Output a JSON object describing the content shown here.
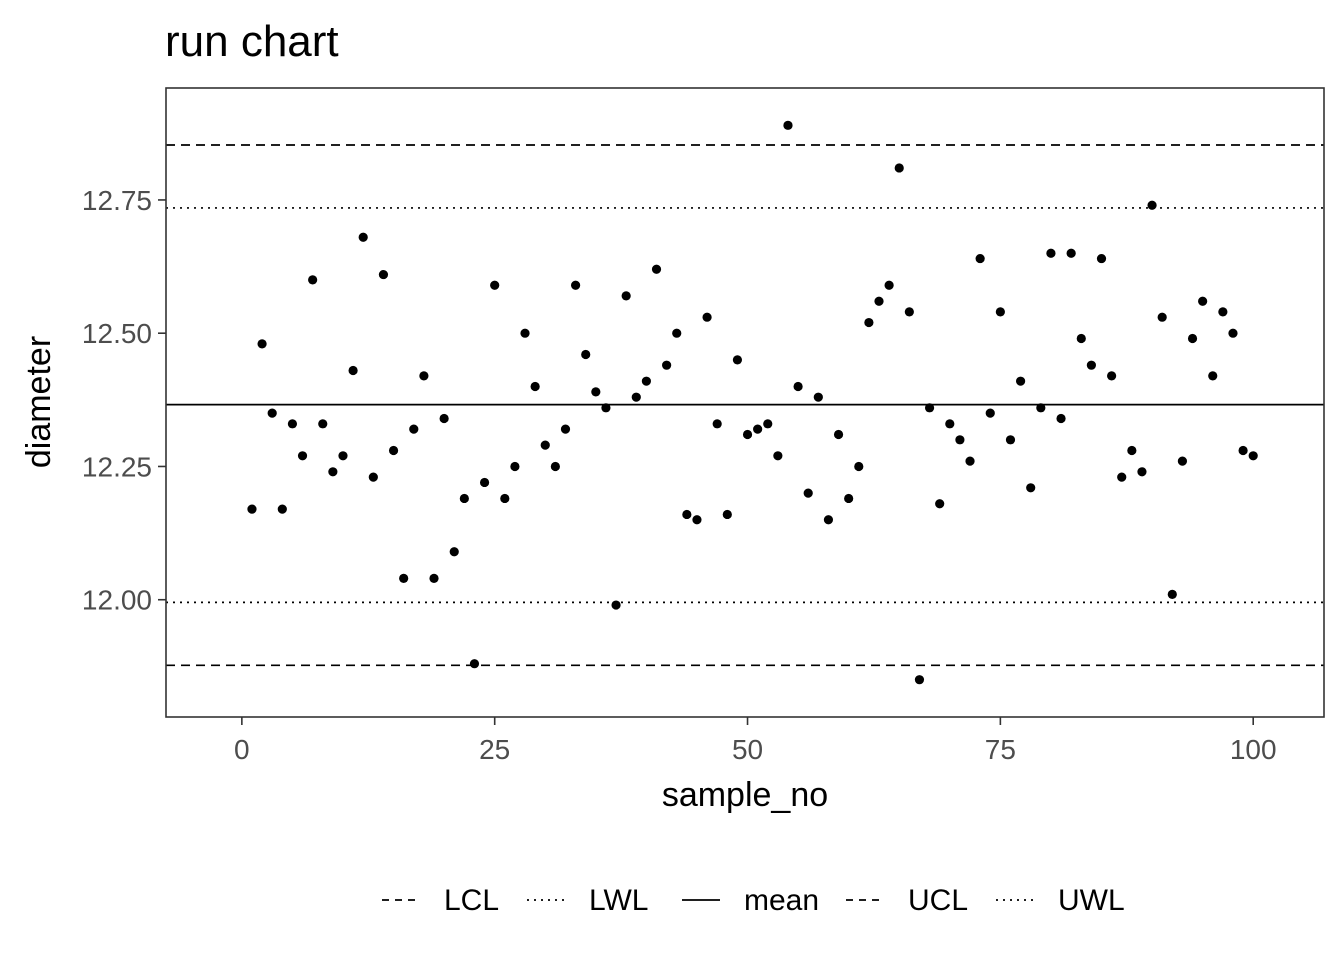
{
  "chart_data": {
    "type": "scatter",
    "title": "run chart",
    "xlabel": "sample_no",
    "ylabel": "diameter",
    "xlim": [
      -7.5,
      107
    ],
    "ylim": [
      11.78,
      12.96
    ],
    "x_ticks": [
      0,
      25,
      50,
      75,
      100
    ],
    "y_ticks": [
      12.0,
      12.25,
      12.5,
      12.75
    ],
    "x_tick_labels": [
      "0",
      "25",
      "50",
      "75",
      "100"
    ],
    "y_tick_labels": [
      "12.00",
      "12.25",
      "12.50",
      "12.75"
    ],
    "grid": false,
    "legend_position": "bottom",
    "reference_lines": [
      {
        "name": "LCL",
        "value": 11.877,
        "linetype": "dashed"
      },
      {
        "name": "LWL",
        "value": 11.995,
        "linetype": "dotted"
      },
      {
        "name": "mean",
        "value": 12.366,
        "linetype": "solid"
      },
      {
        "name": "UCL",
        "value": 12.853,
        "linetype": "dashed"
      },
      {
        "name": "UWL",
        "value": 12.735,
        "linetype": "dotted"
      }
    ],
    "series": [
      {
        "x": [
          1,
          2,
          3,
          4,
          5,
          6,
          7,
          8,
          9,
          10,
          11,
          12,
          13,
          14,
          15,
          16,
          17,
          18,
          19,
          20,
          21,
          22,
          23,
          24,
          25,
          26,
          27,
          28,
          29,
          30,
          31,
          32,
          33,
          34,
          35,
          36,
          37,
          38,
          39,
          40,
          41,
          42,
          43,
          44,
          45,
          46,
          47,
          48,
          49,
          50,
          51,
          52,
          53,
          54,
          55,
          56,
          57,
          58,
          59,
          60,
          61,
          62,
          63,
          64,
          65,
          66,
          67,
          68,
          69,
          70,
          71,
          72,
          73,
          74,
          75,
          76,
          77,
          78,
          79,
          80,
          81,
          82,
          83,
          84,
          85,
          86,
          87,
          88,
          89,
          90,
          91,
          92,
          93,
          94,
          95,
          96,
          97,
          98,
          99,
          100
        ],
        "y": [
          12.17,
          12.48,
          12.35,
          12.17,
          12.33,
          12.27,
          12.6,
          12.33,
          12.24,
          12.27,
          12.43,
          12.68,
          12.23,
          12.61,
          12.28,
          12.04,
          12.32,
          12.42,
          12.04,
          12.34,
          12.09,
          12.19,
          11.88,
          12.22,
          12.59,
          12.19,
          12.25,
          12.5,
          12.4,
          12.29,
          12.25,
          12.32,
          12.59,
          12.46,
          12.39,
          12.36,
          11.99,
          12.57,
          12.38,
          12.41,
          12.62,
          12.44,
          12.5,
          12.16,
          12.15,
          12.53,
          12.33,
          12.16,
          12.45,
          12.31,
          12.32,
          12.33,
          12.27,
          12.89,
          12.4,
          12.2,
          12.38,
          12.15,
          12.31,
          12.19,
          12.25,
          12.52,
          12.56,
          12.59,
          12.81,
          12.54,
          11.85,
          12.36,
          12.18,
          12.33,
          12.3,
          12.26,
          12.64,
          12.35,
          12.54,
          12.3,
          12.41,
          12.21,
          12.36,
          12.65,
          12.34,
          12.65,
          12.49,
          12.44,
          12.64,
          12.42,
          12.23,
          12.28,
          12.24,
          12.74,
          12.53,
          12.01,
          12.26,
          12.49,
          12.56,
          12.42,
          12.54,
          12.5,
          12.28,
          12.27
        ]
      }
    ]
  },
  "colors": {
    "points": "#000000",
    "lines": "#000000",
    "panel_border": "#333333",
    "tick_text": "#4d4d4d"
  }
}
